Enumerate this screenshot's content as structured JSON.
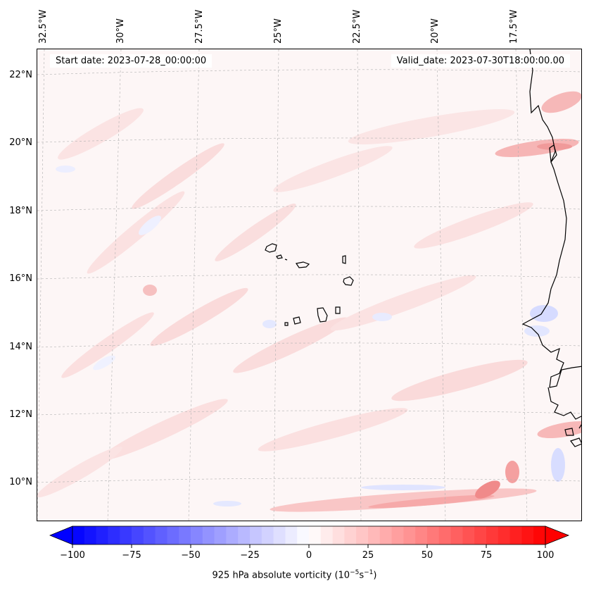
{
  "header": {
    "start_date": "Start date: 2023-07-28_00:00:00",
    "valid_date": "Valid_date: 2023-07-30T18:00:00.00"
  },
  "axes": {
    "lon_labels": [
      "32.5°W",
      "30°W",
      "27.5°W",
      "25°W",
      "22.5°W",
      "20°W",
      "17.5°W"
    ],
    "lat_labels": [
      "22°N",
      "20°N",
      "18°N",
      "16°N",
      "14°N",
      "12°N",
      "10°N"
    ]
  },
  "colorbar": {
    "ticks": [
      "−100",
      "−75",
      "−50",
      "−25",
      "0",
      "25",
      "50",
      "75",
      "100"
    ],
    "title_prefix": "925 hPa absolute vorticity (10",
    "title_exp1": "−5",
    "title_mid": "s",
    "title_exp2": "−1",
    "title_suffix": ")",
    "min": -100,
    "max": 100,
    "neg_color": "#0000ff",
    "pos_color": "#ff0000"
  },
  "map": {
    "coastline_color": "#000000",
    "grid_color": "#b0b0b0",
    "background_color": "#fdf6f6"
  }
}
